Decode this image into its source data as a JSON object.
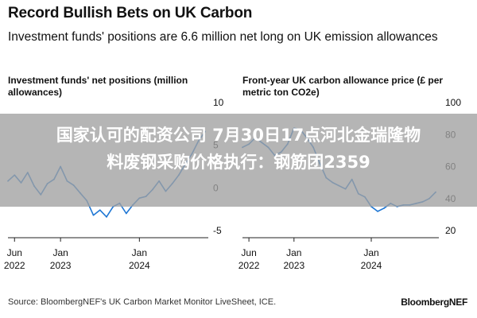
{
  "header": {
    "title": "Record Bullish Bets on UK Carbon",
    "subtitle": "Investment funds' positions are 6.6 million net long on UK emission allowances"
  },
  "chart_data": [
    {
      "type": "line",
      "title": "Investment funds' net positions (million allowances)",
      "ylim": [
        -5,
        10
      ],
      "yticks": [
        "10",
        "5",
        "0",
        "-5"
      ],
      "xticks": [
        {
          "label1": "Jun",
          "label2": "2022",
          "x": "2022-06"
        },
        {
          "label1": "Jan",
          "label2": "2023",
          "x": "2023-01"
        },
        {
          "label1": "Jan",
          "label2": "2024",
          "x": "2024-01"
        }
      ],
      "x_range": [
        "2022-05",
        "2024-11"
      ],
      "color": "#1f77d4",
      "series": [
        {
          "x": [
            "2022-05",
            "2022-06",
            "2022-07",
            "2022-08",
            "2022-09",
            "2022-10",
            "2022-11",
            "2022-12",
            "2023-01",
            "2023-02",
            "2023-03",
            "2023-04",
            "2023-05",
            "2023-06",
            "2023-07",
            "2023-08",
            "2023-09",
            "2023-10",
            "2023-11",
            "2023-12",
            "2024-01",
            "2024-02",
            "2024-03",
            "2024-04",
            "2024-05",
            "2024-06",
            "2024-07",
            "2024-08",
            "2024-09",
            "2024-10",
            "2024-11"
          ],
          "values": [
            0.8,
            1.5,
            0.6,
            1.8,
            0.2,
            -0.8,
            0.5,
            1.0,
            2.5,
            0.8,
            0.3,
            -0.6,
            -1.5,
            -3.2,
            -2.6,
            -3.4,
            -2.2,
            -1.8,
            -3.0,
            -2.0,
            -1.2,
            -1.0,
            -0.2,
            0.8,
            -0.4,
            0.5,
            1.5,
            2.8,
            4.0,
            5.5,
            6.6
          ]
        }
      ]
    },
    {
      "type": "line",
      "title": "Front-year UK carbon allowance price (£ per metric ton CO2e)",
      "ylim": [
        20,
        100
      ],
      "yticks": [
        "100",
        "80",
        "60",
        "40",
        "20"
      ],
      "xticks": [
        {
          "label1": "Jun",
          "label2": "2022",
          "x": "2022-06"
        },
        {
          "label1": "Jan",
          "label2": "2023",
          "x": "2023-01"
        },
        {
          "label1": "Jan",
          "label2": "2024",
          "x": "2024-01"
        }
      ],
      "x_range": [
        "2022-05",
        "2024-11"
      ],
      "color": "#1f77d4",
      "series": [
        {
          "x": [
            "2022-05",
            "2022-06",
            "2022-07",
            "2022-08",
            "2022-09",
            "2022-10",
            "2022-11",
            "2022-12",
            "2023-01",
            "2023-02",
            "2023-03",
            "2023-04",
            "2023-05",
            "2023-06",
            "2023-07",
            "2023-08",
            "2023-09",
            "2023-10",
            "2023-11",
            "2023-12",
            "2024-01",
            "2024-02",
            "2024-03",
            "2024-04",
            "2024-05",
            "2024-06",
            "2024-07",
            "2024-08",
            "2024-09",
            "2024-10",
            "2024-11"
          ],
          "values": [
            72,
            74,
            78,
            75,
            72,
            67,
            69,
            74,
            84,
            83,
            78,
            72,
            62,
            53,
            50,
            48,
            46,
            52,
            43,
            41,
            35,
            32,
            34,
            37,
            35,
            36,
            36,
            37,
            38,
            40,
            44
          ]
        }
      ]
    }
  ],
  "overlay": {
    "line1": "国家认可的配资公司 7月30日17点河北金瑞隆物",
    "line2": "料废钢采购价格执行：钢筋团2359"
  },
  "footer": {
    "source": "Source: BloombergNEF's UK Carbon Market Monitor LiveSheet, ICE.",
    "brand": "BloombergNEF"
  }
}
